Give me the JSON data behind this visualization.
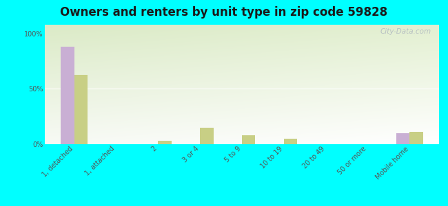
{
  "title": "Owners and renters by unit type in zip code 59828",
  "categories": [
    "1, detached",
    "1, attached",
    "2",
    "3 or 4",
    "5 to 9",
    "10 to 19",
    "20 to 49",
    "50 or more",
    "Mobile home"
  ],
  "owner_values": [
    88,
    0,
    0,
    0,
    0,
    0,
    0,
    0,
    10
  ],
  "renter_values": [
    63,
    0,
    3,
    15,
    8,
    5,
    0,
    0,
    11
  ],
  "owner_color": "#c9afd4",
  "renter_color": "#c8cf85",
  "bg_color": "#00ffff",
  "ylabel_ticks": [
    "0%",
    "50%",
    "100%"
  ],
  "ytick_vals": [
    0,
    50,
    100
  ],
  "ylim": [
    0,
    108
  ],
  "bar_width": 0.32,
  "watermark": "City-Data.com",
  "title_fontsize": 12,
  "tick_fontsize": 7,
  "legend_fontsize": 9
}
